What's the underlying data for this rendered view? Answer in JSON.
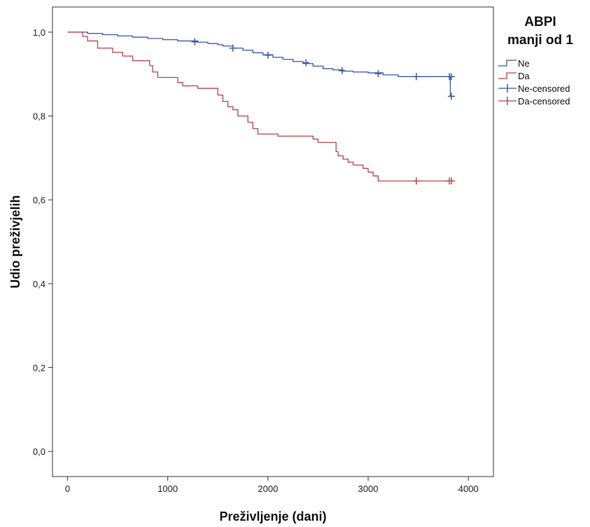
{
  "chart_data": {
    "type": "line",
    "subtype": "kaplan-meier step",
    "xlabel": "Preživljenje (dani)",
    "ylabel": "Udio preživjelih",
    "xlim": [
      -150,
      4250
    ],
    "ylim": [
      -0.06,
      1.06
    ],
    "x_ticks": [
      0,
      1000,
      2000,
      3000,
      4000
    ],
    "x_tick_labels": [
      "0",
      "1000",
      "2000",
      "3000",
      "4000"
    ],
    "y_ticks": [
      0.0,
      0.2,
      0.4,
      0.6,
      0.8,
      1.0
    ],
    "y_tick_labels": [
      "0,0",
      "0,2",
      "0,4",
      "0,6",
      "0,8",
      "1,0"
    ],
    "grid": false,
    "legend": {
      "title_lines": [
        "ABPI",
        "manji od 1"
      ],
      "placement": "right",
      "entries": [
        {
          "label": "Ne",
          "kind": "step",
          "color": "#3b5ba8"
        },
        {
          "label": "Da",
          "kind": "step",
          "color": "#b8474a"
        },
        {
          "label": "Ne-censored",
          "kind": "censor",
          "color": "#3b5ba8"
        },
        {
          "label": "Da-censored",
          "kind": "censor",
          "color": "#b8474a"
        }
      ]
    },
    "series": [
      {
        "name": "Ne",
        "color": "#3b5ba8",
        "x": [
          0,
          200,
          350,
          500,
          650,
          800,
          950,
          1100,
          1300,
          1400,
          1500,
          1550,
          1650,
          1750,
          1850,
          1950,
          2050,
          2150,
          2250,
          2350,
          2450,
          2550,
          2650,
          2750,
          2850,
          3000,
          3150,
          3300,
          3480,
          3820,
          3820,
          3850
        ],
        "y": [
          1.0,
          0.997,
          0.994,
          0.991,
          0.988,
          0.985,
          0.982,
          0.979,
          0.976,
          0.973,
          0.97,
          0.967,
          0.962,
          0.957,
          0.951,
          0.946,
          0.94,
          0.935,
          0.93,
          0.925,
          0.919,
          0.913,
          0.91,
          0.907,
          0.905,
          0.903,
          0.898,
          0.894,
          0.894,
          0.894,
          0.847,
          0.847
        ],
        "censored": [
          [
            1270,
            0.977
          ],
          [
            1650,
            0.962
          ],
          [
            2000,
            0.945
          ],
          [
            2380,
            0.927
          ],
          [
            2740,
            0.908
          ],
          [
            3100,
            0.901
          ],
          [
            3480,
            0.894
          ],
          [
            3480,
            0.894
          ],
          [
            3810,
            0.894
          ],
          [
            3830,
            0.894
          ],
          [
            3830,
            0.847
          ]
        ]
      },
      {
        "name": "Da",
        "color": "#b8474a",
        "x": [
          0,
          150,
          200,
          300,
          450,
          550,
          650,
          820,
          850,
          900,
          1100,
          1150,
          1300,
          1500,
          1550,
          1600,
          1650,
          1700,
          1800,
          1850,
          1900,
          2100,
          2450,
          2500,
          2680,
          2700,
          2750,
          2800,
          2850,
          2950,
          3000,
          3050,
          3100,
          3850
        ],
        "y": [
          1.0,
          0.99,
          0.979,
          0.962,
          0.952,
          0.943,
          0.932,
          0.92,
          0.905,
          0.892,
          0.88,
          0.872,
          0.866,
          0.85,
          0.835,
          0.822,
          0.815,
          0.8,
          0.785,
          0.77,
          0.757,
          0.752,
          0.745,
          0.737,
          0.715,
          0.705,
          0.697,
          0.69,
          0.683,
          0.675,
          0.666,
          0.657,
          0.645,
          0.645
        ],
        "censored": [
          [
            3480,
            0.645
          ],
          [
            3480,
            0.645
          ],
          [
            3810,
            0.645
          ],
          [
            3830,
            0.645
          ]
        ]
      }
    ]
  }
}
